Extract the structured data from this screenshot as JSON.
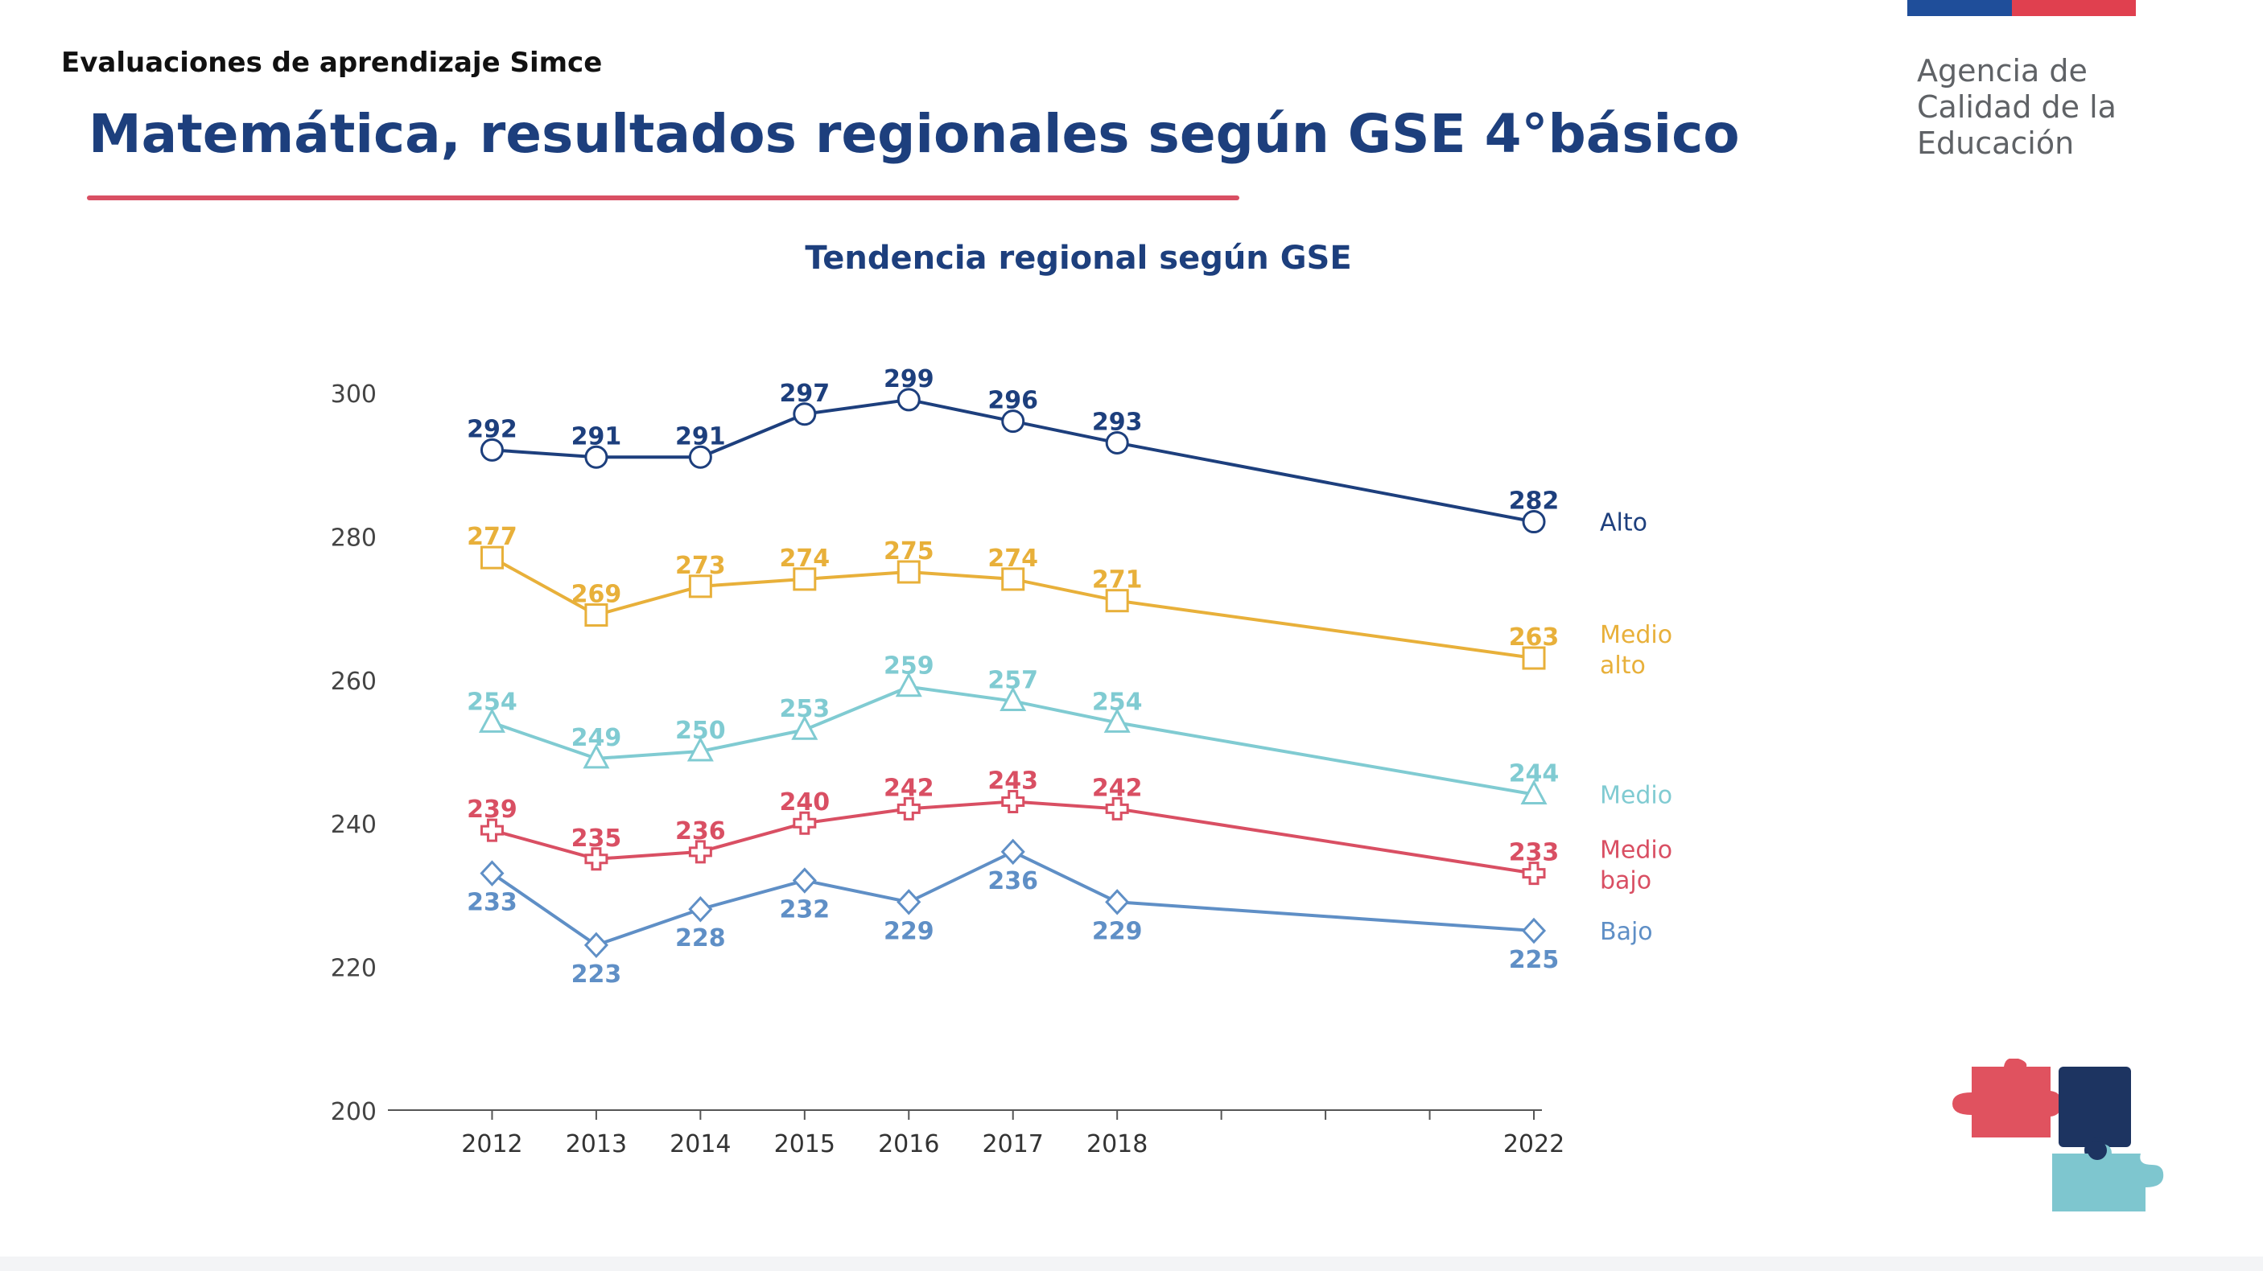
{
  "header": {
    "label": "Evaluaciones de aprendizaje Simce",
    "title": "Matemática, resultados regionales según GSE 4°básico"
  },
  "brand": {
    "lines": [
      "Agencia de",
      "Calidad de la",
      "Educación"
    ],
    "flag_colors": [
      "#1f4e9a",
      "#e0404f"
    ]
  },
  "chart_data": {
    "type": "line",
    "title": "Tendencia regional según GSE",
    "xlabel": "",
    "ylabel": "",
    "x": [
      2012,
      2013,
      2014,
      2015,
      2016,
      2017,
      2018,
      2022
    ],
    "x_axis_range": [
      2011,
      2022
    ],
    "ylim": [
      200,
      300
    ],
    "yticks": [
      200,
      220,
      240,
      260,
      280,
      300
    ],
    "grid": false,
    "legend": "right, labels at line ends",
    "series": [
      {
        "name": "Alto",
        "color": "#1d3f7d",
        "marker": "circle",
        "label_position": "above",
        "values": [
          292,
          291,
          291,
          297,
          299,
          296,
          293,
          282
        ]
      },
      {
        "name": "Medio alto",
        "color": "#e8b03a",
        "marker": "square",
        "label_position": "above",
        "values": [
          277,
          269,
          273,
          274,
          275,
          274,
          271,
          263
        ]
      },
      {
        "name": "Medio",
        "color": "#80cbd2",
        "marker": "triangle",
        "label_position": "above",
        "values": [
          254,
          249,
          250,
          253,
          259,
          257,
          254,
          244
        ]
      },
      {
        "name": "Medio bajo",
        "color": "#d94f63",
        "marker": "cross",
        "label_position": "above",
        "values": [
          239,
          235,
          236,
          240,
          242,
          243,
          242,
          233
        ]
      },
      {
        "name": "Bajo",
        "color": "#5f8fc6",
        "marker": "diamond",
        "label_position": "below",
        "values": [
          233,
          223,
          228,
          232,
          229,
          236,
          229,
          225
        ]
      }
    ]
  },
  "decoration": {
    "puzzle_icon": "puzzle-pieces",
    "puzzle_colors": [
      "#e0525f",
      "#1d3461",
      "#7ec6cf"
    ]
  }
}
